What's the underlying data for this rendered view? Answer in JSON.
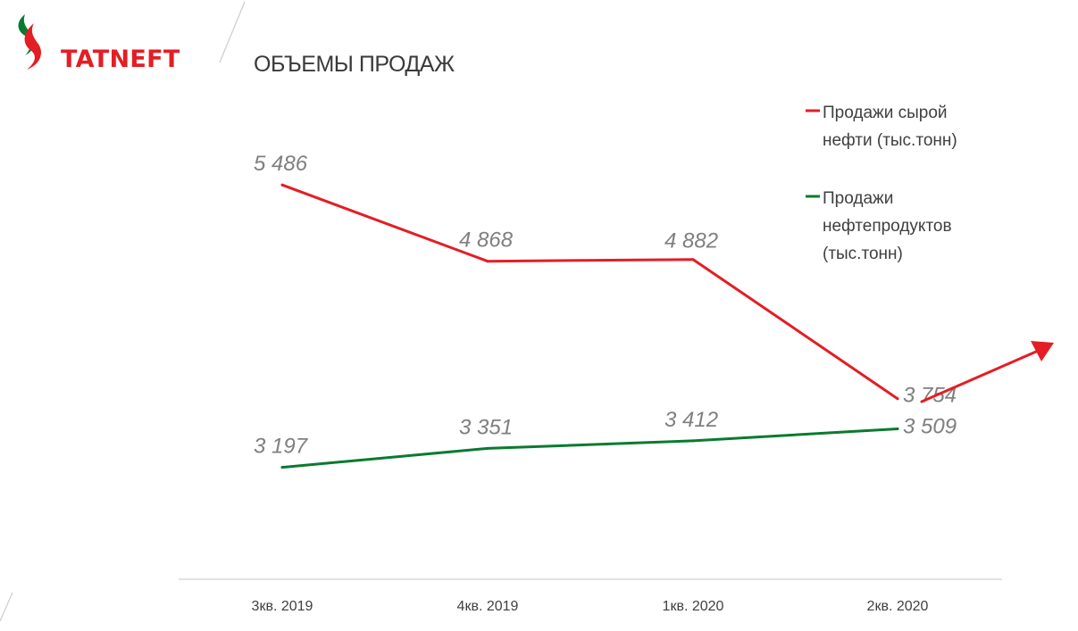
{
  "brand": {
    "name": "TATNEFT",
    "primary_color": "#e31e24",
    "secondary_color": "#00843d"
  },
  "page": {
    "title": "ОБЪЕМЫ ПРОДАЖ"
  },
  "chart_data": {
    "type": "line",
    "title": "ОБЪЕМЫ ПРОДАЖ",
    "categories": [
      "3кв. 2019",
      "4кв. 2019",
      "1кв. 2020",
      "2кв. 2020"
    ],
    "series": [
      {
        "name": "Продажи сырой нефти (тыс.тонн)",
        "name_lines": [
          "Продажи сырой",
          "нефти (тыс.тонн)"
        ],
        "values": [
          5486,
          4868,
          4882,
          3754
        ],
        "labels": [
          "5 486",
          "4 868",
          "4 882",
          "3 754"
        ],
        "color": "#e31e24"
      },
      {
        "name": "Продажи нефтепродуктов (тыс.тонн)",
        "name_lines": [
          "Продажи",
          "нефтепродуктов",
          "(тыс.тонн)"
        ],
        "values": [
          3197,
          3351,
          3412,
          3509
        ],
        "labels": [
          "3 197",
          "3 351",
          "3 412",
          "3 509"
        ],
        "color": "#0a7a2f"
      }
    ],
    "xlabel": "",
    "ylabel": "",
    "ylim": [
      2500,
      5900
    ],
    "grid": false,
    "legend_position": "top-right",
    "annotation": {
      "type": "trend-arrow-up",
      "color": "#e31e24"
    }
  }
}
